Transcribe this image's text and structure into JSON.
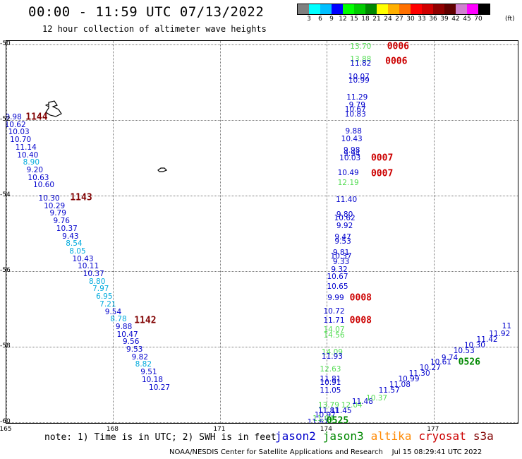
{
  "header": {
    "title": "00:00 - 11:59 UTC 07/13/2022",
    "subtitle": "12 hour collection of altimeter wave heights"
  },
  "colorbar": {
    "colors": [
      "#808080",
      "#00ffff",
      "#00bfff",
      "#0000ff",
      "#00ff00",
      "#00cc00",
      "#008800",
      "#ffff00",
      "#ffb000",
      "#ff7000",
      "#ff0000",
      "#d00000",
      "#900000",
      "#600000",
      "#d080d0",
      "#ff00ff",
      "#000000"
    ],
    "ticks": [
      "3",
      "6",
      "9",
      "12",
      "15",
      "18",
      "21",
      "24",
      "27",
      "30",
      "33",
      "36",
      "39",
      "42",
      "45",
      "70"
    ],
    "unit": "(ft)"
  },
  "axes": {
    "lat_labels": [
      "-50",
      "-52",
      "-54",
      "-56",
      "-58",
      "-60"
    ],
    "lon_labels": [
      "165",
      "168",
      "171",
      "174",
      "177"
    ]
  },
  "map_data": {
    "satellite_colors": {
      "jason2": "#0000cc",
      "jason3": "#008800",
      "altika": "#ff8800",
      "cryosat": "#cc0000",
      "s3a": "#800000"
    },
    "swh_colors": {
      "light_green": "#55dd55",
      "cyan": "#00aadd",
      "blue": "#0000cc"
    },
    "pass_labels": [
      {
        "text": "1144",
        "lon": 165.85,
        "lat": -51.92,
        "color": "#800000"
      },
      {
        "text": "1143",
        "lon": 167.1,
        "lat": -54.05,
        "color": "#800000"
      },
      {
        "text": "1142",
        "lon": 168.9,
        "lat": -57.3,
        "color": "#800000"
      },
      {
        "text": "0006",
        "lon": 176.0,
        "lat": -50.05,
        "color": "#cc0000"
      },
      {
        "text": "0006",
        "lon": 175.95,
        "lat": -50.45,
        "color": "#cc0000"
      },
      {
        "text": "0007",
        "lon": 175.55,
        "lat": -53.0,
        "color": "#cc0000"
      },
      {
        "text": "0007",
        "lon": 175.55,
        "lat": -53.42,
        "color": "#cc0000"
      },
      {
        "text": "0008",
        "lon": 174.95,
        "lat": -56.7,
        "color": "#cc0000"
      },
      {
        "text": "0008",
        "lon": 174.95,
        "lat": -57.3,
        "color": "#cc0000"
      },
      {
        "text": "0526",
        "lon": 178.0,
        "lat": -58.4,
        "color": "#008800"
      },
      {
        "text": "0525",
        "lon": 174.3,
        "lat": -59.95,
        "color": "#008800"
      }
    ],
    "swh_values": [
      {
        "v": "13.70",
        "lon": 174.95,
        "lat": -50.05,
        "c": "light_green"
      },
      {
        "v": "13.88",
        "lon": 174.95,
        "lat": -50.38,
        "c": "light_green"
      },
      {
        "v": "11.82",
        "lon": 174.95,
        "lat": -50.5,
        "c": "blue"
      },
      {
        "v": "10.07",
        "lon": 174.9,
        "lat": -50.85,
        "c": "blue"
      },
      {
        "v": "10.99",
        "lon": 174.9,
        "lat": -50.95,
        "c": "blue"
      },
      {
        "v": "11.29",
        "lon": 174.85,
        "lat": -51.4,
        "c": "blue"
      },
      {
        "v": "9.79",
        "lon": 174.85,
        "lat": -51.6,
        "c": "blue"
      },
      {
        "v": "10.67",
        "lon": 174.8,
        "lat": -51.72,
        "c": "blue"
      },
      {
        "v": "10.83",
        "lon": 174.8,
        "lat": -51.85,
        "c": "blue"
      },
      {
        "v": "9.88",
        "lon": 174.75,
        "lat": -52.3,
        "c": "blue"
      },
      {
        "v": "10.43",
        "lon": 174.7,
        "lat": -52.5,
        "c": "blue"
      },
      {
        "v": "9.98",
        "lon": 174.7,
        "lat": -52.8,
        "c": "blue"
      },
      {
        "v": "9.94",
        "lon": 174.7,
        "lat": -52.9,
        "c": "blue"
      },
      {
        "v": "10.03",
        "lon": 174.65,
        "lat": -53.0,
        "c": "blue"
      },
      {
        "v": "10.49",
        "lon": 174.6,
        "lat": -53.4,
        "c": "blue"
      },
      {
        "v": "12.19",
        "lon": 174.6,
        "lat": -53.65,
        "c": "light_green"
      },
      {
        "v": "11.40",
        "lon": 174.55,
        "lat": -54.1,
        "c": "blue"
      },
      {
        "v": "9.80",
        "lon": 174.5,
        "lat": -54.5,
        "c": "blue"
      },
      {
        "v": "10.62",
        "lon": 174.5,
        "lat": -54.6,
        "c": "blue"
      },
      {
        "v": "9.92",
        "lon": 174.5,
        "lat": -54.8,
        "c": "blue"
      },
      {
        "v": "9.47",
        "lon": 174.45,
        "lat": -55.1,
        "c": "blue"
      },
      {
        "v": "9.53",
        "lon": 174.45,
        "lat": -55.2,
        "c": "blue"
      },
      {
        "v": "9.81",
        "lon": 174.4,
        "lat": -55.5,
        "c": "blue"
      },
      {
        "v": "10.37",
        "lon": 174.4,
        "lat": -55.6,
        "c": "blue"
      },
      {
        "v": "9.33",
        "lon": 174.4,
        "lat": -55.75,
        "c": "blue"
      },
      {
        "v": "9.32",
        "lon": 174.35,
        "lat": -55.95,
        "c": "blue"
      },
      {
        "v": "10.67",
        "lon": 174.3,
        "lat": -56.15,
        "c": "blue"
      },
      {
        "v": "10.65",
        "lon": 174.3,
        "lat": -56.4,
        "c": "blue"
      },
      {
        "v": "9.99",
        "lon": 174.25,
        "lat": -56.7,
        "c": "blue"
      },
      {
        "v": "10.72",
        "lon": 174.2,
        "lat": -57.05,
        "c": "blue"
      },
      {
        "v": "11.71",
        "lon": 174.2,
        "lat": -57.3,
        "c": "blue"
      },
      {
        "v": "14.07",
        "lon": 174.2,
        "lat": -57.55,
        "c": "light_green"
      },
      {
        "v": "14.56",
        "lon": 174.2,
        "lat": -57.7,
        "c": "light_green"
      },
      {
        "v": "14.09",
        "lon": 174.15,
        "lat": -58.15,
        "c": "light_green"
      },
      {
        "v": "11.93",
        "lon": 174.15,
        "lat": -58.25,
        "c": "blue"
      },
      {
        "v": "12.63",
        "lon": 174.1,
        "lat": -58.6,
        "c": "light_green"
      },
      {
        "v": "11.81",
        "lon": 174.1,
        "lat": -58.85,
        "c": "blue"
      },
      {
        "v": "10.91",
        "lon": 174.1,
        "lat": -58.95,
        "c": "blue"
      },
      {
        "v": "11.05",
        "lon": 174.1,
        "lat": -59.15,
        "c": "blue"
      },
      {
        "v": "13.79",
        "lon": 174.05,
        "lat": -59.55,
        "c": "light_green"
      },
      {
        "v": "11.81",
        "lon": 174.05,
        "lat": -59.7,
        "c": "blue"
      },
      {
        "v": "11.45",
        "lon": 174.4,
        "lat": -59.7,
        "c": "blue"
      },
      {
        "v": "12.04",
        "lon": 174.7,
        "lat": -59.55,
        "c": "light_green"
      },
      {
        "v": "10.97",
        "lon": 173.95,
        "lat": -59.8,
        "c": "blue"
      },
      {
        "v": "11.04",
        "lon": 173.9,
        "lat": -59.9,
        "c": "light_green"
      },
      {
        "v": "11.67",
        "lon": 173.75,
        "lat": -60.0,
        "c": "blue"
      },
      {
        "v": "11.48",
        "lon": 175.0,
        "lat": -59.45,
        "c": "blue"
      },
      {
        "v": "10.37",
        "lon": 175.4,
        "lat": -59.35,
        "c": "light_green"
      },
      {
        "v": "11.57",
        "lon": 175.75,
        "lat": -59.15,
        "c": "blue"
      },
      {
        "v": "11.08",
        "lon": 176.05,
        "lat": -59.0,
        "c": "blue"
      },
      {
        "v": "10.99",
        "lon": 176.3,
        "lat": -58.85,
        "c": "blue"
      },
      {
        "v": "11.30",
        "lon": 176.6,
        "lat": -58.7,
        "c": "blue"
      },
      {
        "v": "10.27",
        "lon": 176.9,
        "lat": -58.55,
        "c": "blue"
      },
      {
        "v": "10.61",
        "lon": 177.2,
        "lat": -58.4,
        "c": "blue"
      },
      {
        "v": "9.74",
        "lon": 177.45,
        "lat": -58.3,
        "c": "blue"
      },
      {
        "v": "10.53",
        "lon": 177.85,
        "lat": -58.1,
        "c": "blue"
      },
      {
        "v": "10.30",
        "lon": 178.15,
        "lat": -57.95,
        "c": "blue"
      },
      {
        "v": "11.42",
        "lon": 178.5,
        "lat": -57.8,
        "c": "blue"
      },
      {
        "v": "11.92",
        "lon": 178.85,
        "lat": -57.65,
        "c": "blue"
      },
      {
        "v": "11",
        "lon": 179.05,
        "lat": -57.45,
        "c": "blue"
      },
      {
        "v": "9.98",
        "lon": 165.2,
        "lat": -51.92,
        "c": "blue"
      },
      {
        "v": "10.62",
        "lon": 165.25,
        "lat": -52.12,
        "c": "blue"
      },
      {
        "v": "10.03",
        "lon": 165.35,
        "lat": -52.32,
        "c": "blue"
      },
      {
        "v": "10.70",
        "lon": 165.4,
        "lat": -52.52,
        "c": "blue"
      },
      {
        "v": "11.14",
        "lon": 165.55,
        "lat": -52.72,
        "c": "blue"
      },
      {
        "v": "10.40",
        "lon": 165.6,
        "lat": -52.92,
        "c": "blue"
      },
      {
        "v": "8.90",
        "lon": 165.7,
        "lat": -53.12,
        "c": "cyan"
      },
      {
        "v": "9.20",
        "lon": 165.8,
        "lat": -53.32,
        "c": "blue"
      },
      {
        "v": "10.63",
        "lon": 165.9,
        "lat": -53.52,
        "c": "blue"
      },
      {
        "v": "10.60",
        "lon": 166.05,
        "lat": -53.72,
        "c": "blue"
      },
      {
        "v": "10.30",
        "lon": 166.2,
        "lat": -54.07,
        "c": "blue"
      },
      {
        "v": "10.29",
        "lon": 166.35,
        "lat": -54.27,
        "c": "blue"
      },
      {
        "v": "9.79",
        "lon": 166.45,
        "lat": -54.47,
        "c": "blue"
      },
      {
        "v": "9.76",
        "lon": 166.55,
        "lat": -54.67,
        "c": "blue"
      },
      {
        "v": "10.37",
        "lon": 166.7,
        "lat": -54.87,
        "c": "blue"
      },
      {
        "v": "9.43",
        "lon": 166.8,
        "lat": -55.07,
        "c": "blue"
      },
      {
        "v": "8.54",
        "lon": 166.9,
        "lat": -55.27,
        "c": "cyan"
      },
      {
        "v": "8.05",
        "lon": 167.0,
        "lat": -55.47,
        "c": "cyan"
      },
      {
        "v": "10.43",
        "lon": 167.15,
        "lat": -55.67,
        "c": "blue"
      },
      {
        "v": "10.11",
        "lon": 167.3,
        "lat": -55.87,
        "c": "blue"
      },
      {
        "v": "10.37",
        "lon": 167.45,
        "lat": -56.07,
        "c": "blue"
      },
      {
        "v": "8.80",
        "lon": 167.55,
        "lat": -56.27,
        "c": "cyan"
      },
      {
        "v": "7.97",
        "lon": 167.65,
        "lat": -56.47,
        "c": "cyan"
      },
      {
        "v": "6.95",
        "lon": 167.75,
        "lat": -56.67,
        "c": "cyan"
      },
      {
        "v": "7.21",
        "lon": 167.85,
        "lat": -56.87,
        "c": "cyan"
      },
      {
        "v": "9.54",
        "lon": 168.0,
        "lat": -57.07,
        "c": "blue"
      },
      {
        "v": "8.78",
        "lon": 168.15,
        "lat": -57.27,
        "c": "cyan"
      },
      {
        "v": "9.88",
        "lon": 168.3,
        "lat": -57.47,
        "c": "blue"
      },
      {
        "v": "10.47",
        "lon": 168.4,
        "lat": -57.67,
        "c": "blue"
      },
      {
        "v": "9.56",
        "lon": 168.5,
        "lat": -57.87,
        "c": "blue"
      },
      {
        "v": "9.53",
        "lon": 168.6,
        "lat": -58.07,
        "c": "blue"
      },
      {
        "v": "9.82",
        "lon": 168.75,
        "lat": -58.27,
        "c": "blue"
      },
      {
        "v": "8.82",
        "lon": 168.85,
        "lat": -58.47,
        "c": "cyan"
      },
      {
        "v": "9.51",
        "lon": 169.0,
        "lat": -58.67,
        "c": "blue"
      },
      {
        "v": "10.18",
        "lon": 169.1,
        "lat": -58.87,
        "c": "blue"
      },
      {
        "v": "10.27",
        "lon": 169.3,
        "lat": -59.07,
        "c": "blue"
      }
    ]
  },
  "footer_note": "note: 1) Time is in UTC; 2) SWH is in feet",
  "legend": [
    {
      "name": "jason2",
      "color": "#0000cc"
    },
    {
      "name": "jason3",
      "color": "#008800"
    },
    {
      "name": "altika",
      "color": "#ff8800"
    },
    {
      "name": "cryosat",
      "color": "#cc0000"
    },
    {
      "name": "s3a",
      "color": "#800000"
    }
  ],
  "credit": "NOAA/NESDIS Center for Satellite Applications and Research    Jul 15 08:29:41 UTC 2022"
}
